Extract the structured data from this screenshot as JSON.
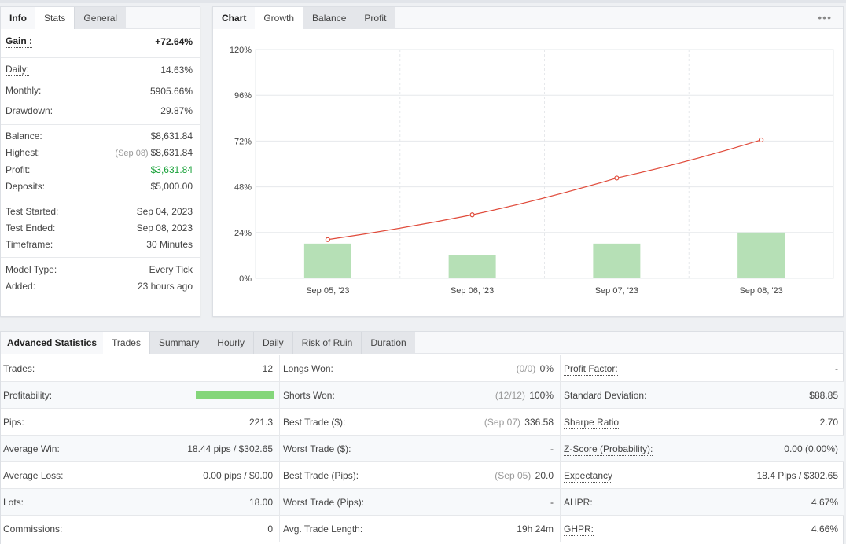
{
  "info": {
    "tabs": [
      "Info",
      "Stats",
      "General"
    ],
    "rows": [
      {
        "label": "Gain :",
        "value": "+72.64%",
        "note": ""
      },
      {
        "label": "Daily:",
        "value": "14.63%",
        "note": ""
      },
      {
        "label": "Monthly:",
        "value": "5905.66%",
        "note": ""
      },
      {
        "label": "Drawdown:",
        "value": "29.87%",
        "note": ""
      },
      {
        "label": "Balance:",
        "value": "$8,631.84",
        "note": ""
      },
      {
        "label": "Highest:",
        "value": "$8,631.84",
        "note": "(Sep 08)"
      },
      {
        "label": "Profit:",
        "value": "$3,631.84",
        "note": ""
      },
      {
        "label": "Deposits:",
        "value": "$5,000.00",
        "note": ""
      },
      {
        "label": "Test Started:",
        "value": "Sep 04, 2023",
        "note": ""
      },
      {
        "label": "Test Ended:",
        "value": "Sep 08, 2023",
        "note": ""
      },
      {
        "label": "Timeframe:",
        "value": "30 Minutes",
        "note": ""
      },
      {
        "label": "Model Type:",
        "value": "Every Tick",
        "note": ""
      },
      {
        "label": "Added:",
        "value": "23 hours ago",
        "note": ""
      }
    ]
  },
  "chart": {
    "tabs": [
      "Chart",
      "Growth",
      "Balance",
      "Profit"
    ],
    "menu_label": "•••",
    "colors": {
      "bar": "#b6e0b6",
      "line": "#e04a3a",
      "grid": "#e6e8eb"
    }
  },
  "chart_data": {
    "type": "bar",
    "categories": [
      "Sep 05, '23",
      "Sep 06, '23",
      "Sep 07, '23",
      "Sep 08, '23"
    ],
    "yticks": [
      "0%",
      "24%",
      "48%",
      "72%",
      "96%",
      "120%"
    ],
    "ylim": [
      0,
      120
    ],
    "grid": true,
    "series": [
      {
        "type": "bar",
        "values": [
          18.2,
          12.0,
          18.2,
          24.0
        ]
      },
      {
        "type": "line",
        "values": [
          20.3,
          33.3,
          52.6,
          72.6
        ]
      }
    ]
  },
  "advanced": {
    "tabs": [
      "Advanced Statistics",
      "Trades",
      "Summary",
      "Hourly",
      "Daily",
      "Risk of Ruin",
      "Duration"
    ],
    "profitability_fraction": 1.0,
    "col1": [
      {
        "label": "Trades:",
        "value": "12",
        "note": ""
      },
      {
        "label": "Profitability:",
        "value": "",
        "note": ""
      },
      {
        "label": "Pips:",
        "value": "221.3",
        "note": ""
      },
      {
        "label": "Average Win:",
        "value": "18.44 pips / $302.65",
        "note": ""
      },
      {
        "label": "Average Loss:",
        "value": "0.00 pips / $0.00",
        "note": ""
      },
      {
        "label": "Lots:",
        "value": "18.00",
        "note": ""
      },
      {
        "label": "Commissions:",
        "value": "0",
        "note": ""
      }
    ],
    "col2": [
      {
        "label": "Longs Won:",
        "value": "0%",
        "note": "(0/0)"
      },
      {
        "label": "Shorts Won:",
        "value": "100%",
        "note": "(12/12)"
      },
      {
        "label": "Best Trade ($):",
        "value": "336.58",
        "note": "(Sep 07)"
      },
      {
        "label": "Worst Trade ($):",
        "value": "-",
        "note": ""
      },
      {
        "label": "Best Trade (Pips):",
        "value": "20.0",
        "note": "(Sep 05)"
      },
      {
        "label": "Worst Trade (Pips):",
        "value": "-",
        "note": ""
      },
      {
        "label": "Avg. Trade Length:",
        "value": "19h 24m",
        "note": ""
      }
    ],
    "col3": [
      {
        "label": "Profit Factor:",
        "value": "-",
        "note": ""
      },
      {
        "label": "Standard Deviation:",
        "value": "$88.85",
        "note": ""
      },
      {
        "label": "Sharpe Ratio",
        "value": "2.70",
        "note": ""
      },
      {
        "label": "Z-Score (Probability):",
        "value": "0.00 (0.00%)",
        "note": ""
      },
      {
        "label": "Expectancy",
        "value": "18.4 Pips / $302.65",
        "note": ""
      },
      {
        "label": "AHPR:",
        "value": "4.67%",
        "note": ""
      },
      {
        "label": "GHPR:",
        "value": "4.66%",
        "note": ""
      }
    ]
  }
}
